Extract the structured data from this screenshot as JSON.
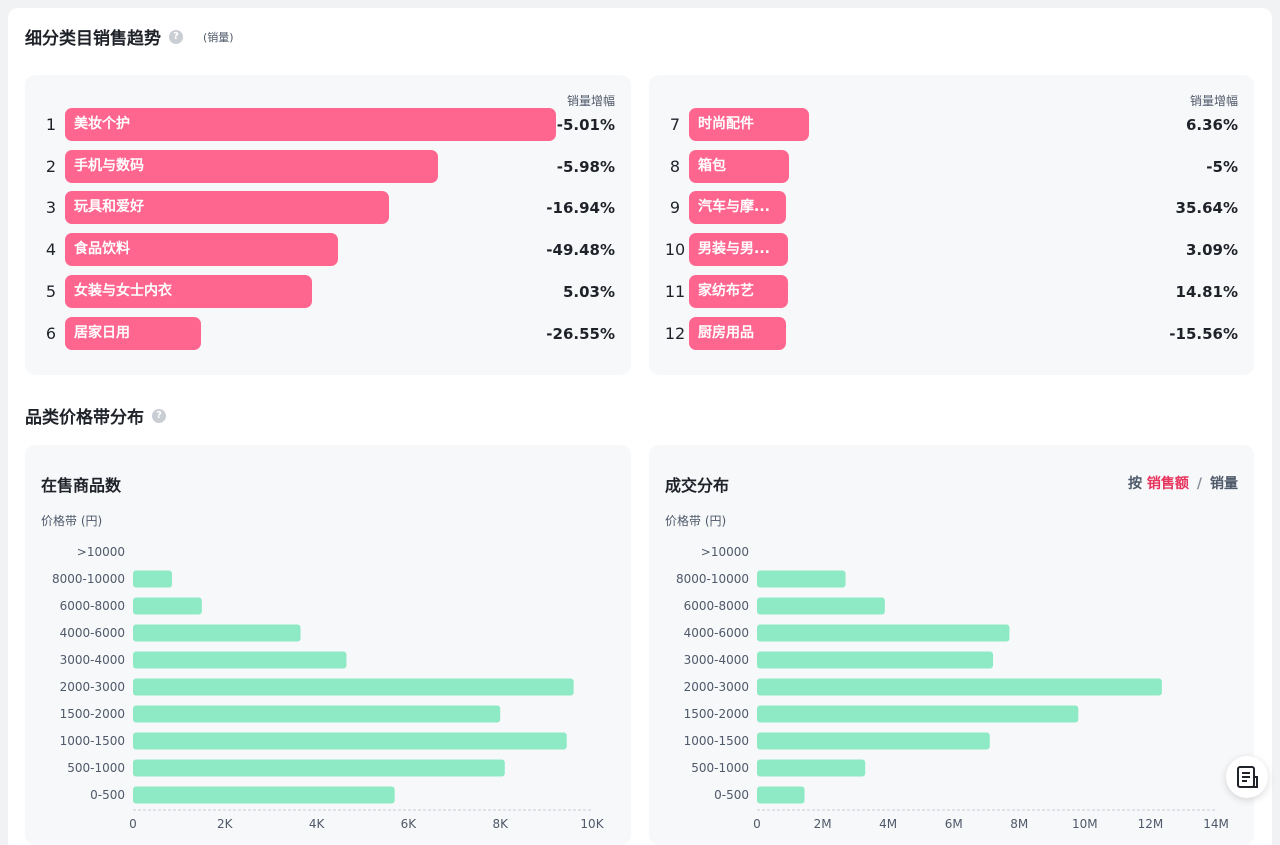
{
  "trend": {
    "title": "细分类目销售趋势",
    "unit_note": "(销量)",
    "col_header": "销量增幅",
    "left": [
      {
        "rank": "1",
        "name": "美妆个护",
        "change": "-5.01%",
        "share": 1.0
      },
      {
        "rank": "2",
        "name": "手机与数码",
        "change": "-5.98%",
        "share": 0.76
      },
      {
        "rank": "3",
        "name": "玩具和爱好",
        "change": "-16.94%",
        "share": 0.66
      },
      {
        "rank": "4",
        "name": "食品饮料",
        "change": "-49.48%",
        "share": 0.556
      },
      {
        "rank": "5",
        "name": "女装与女士内衣",
        "change": "5.03%",
        "share": 0.503
      },
      {
        "rank": "6",
        "name": "居家日用",
        "change": "-26.55%",
        "share": 0.277
      }
    ],
    "right": [
      {
        "rank": "7",
        "name": "时尚配件",
        "change": "6.36%",
        "share": 0.245
      },
      {
        "rank": "8",
        "name": "箱包",
        "change": "-5%",
        "share": 0.204
      },
      {
        "rank": "9",
        "name": "汽车与摩...",
        "change": "35.64%",
        "share": 0.198
      },
      {
        "rank": "10",
        "name": "男装与男...",
        "change": "3.09%",
        "share": 0.202
      },
      {
        "rank": "11",
        "name": "家纺布艺",
        "change": "14.81%",
        "share": 0.202
      },
      {
        "rank": "12",
        "name": "厨房用品",
        "change": "-15.56%",
        "share": 0.198
      }
    ]
  },
  "price_band": {
    "title": "品类价格带分布"
  },
  "toggle": {
    "prefix": "按",
    "active": "销售额",
    "sep": "/",
    "other": "销量"
  },
  "colors": {
    "rank_bar": "#ff668f",
    "price_bar": "#8eeac4"
  },
  "chart_data": [
    {
      "type": "bar",
      "orientation": "horizontal",
      "title": "在售商品数",
      "ylabel": "价格带 (円)",
      "xlabel": "",
      "categories": [
        ">10000",
        "8000-10000",
        "6000-8000",
        "4000-6000",
        "3000-4000",
        "2000-3000",
        "1500-2000",
        "1000-1500",
        "500-1000",
        "0-500"
      ],
      "values": [
        0,
        850,
        1500,
        3650,
        4650,
        9600,
        8000,
        9450,
        8100,
        5700
      ],
      "xlim": [
        0,
        10000
      ],
      "xticks": [
        0,
        2000,
        4000,
        6000,
        8000,
        10000
      ],
      "xtick_labels": [
        "0",
        "2K",
        "4K",
        "6K",
        "8K",
        "10K"
      ]
    },
    {
      "type": "bar",
      "orientation": "horizontal",
      "title": "成交分布",
      "ylabel": "价格带 (円)",
      "xlabel": "",
      "categories": [
        ">10000",
        "8000-10000",
        "6000-8000",
        "4000-6000",
        "3000-4000",
        "2000-3000",
        "1500-2000",
        "1000-1500",
        "500-1000",
        "0-500"
      ],
      "values": [
        0,
        2700000,
        3900000,
        7700000,
        7200000,
        12350000,
        9800000,
        7100000,
        3300000,
        1450000
      ],
      "xlim": [
        0,
        14000000
      ],
      "xticks": [
        0,
        2000000,
        4000000,
        6000000,
        8000000,
        10000000,
        12000000,
        14000000
      ],
      "xtick_labels": [
        "0",
        "2M",
        "4M",
        "6M",
        "8M",
        "10M",
        "12M",
        "14M"
      ]
    }
  ]
}
